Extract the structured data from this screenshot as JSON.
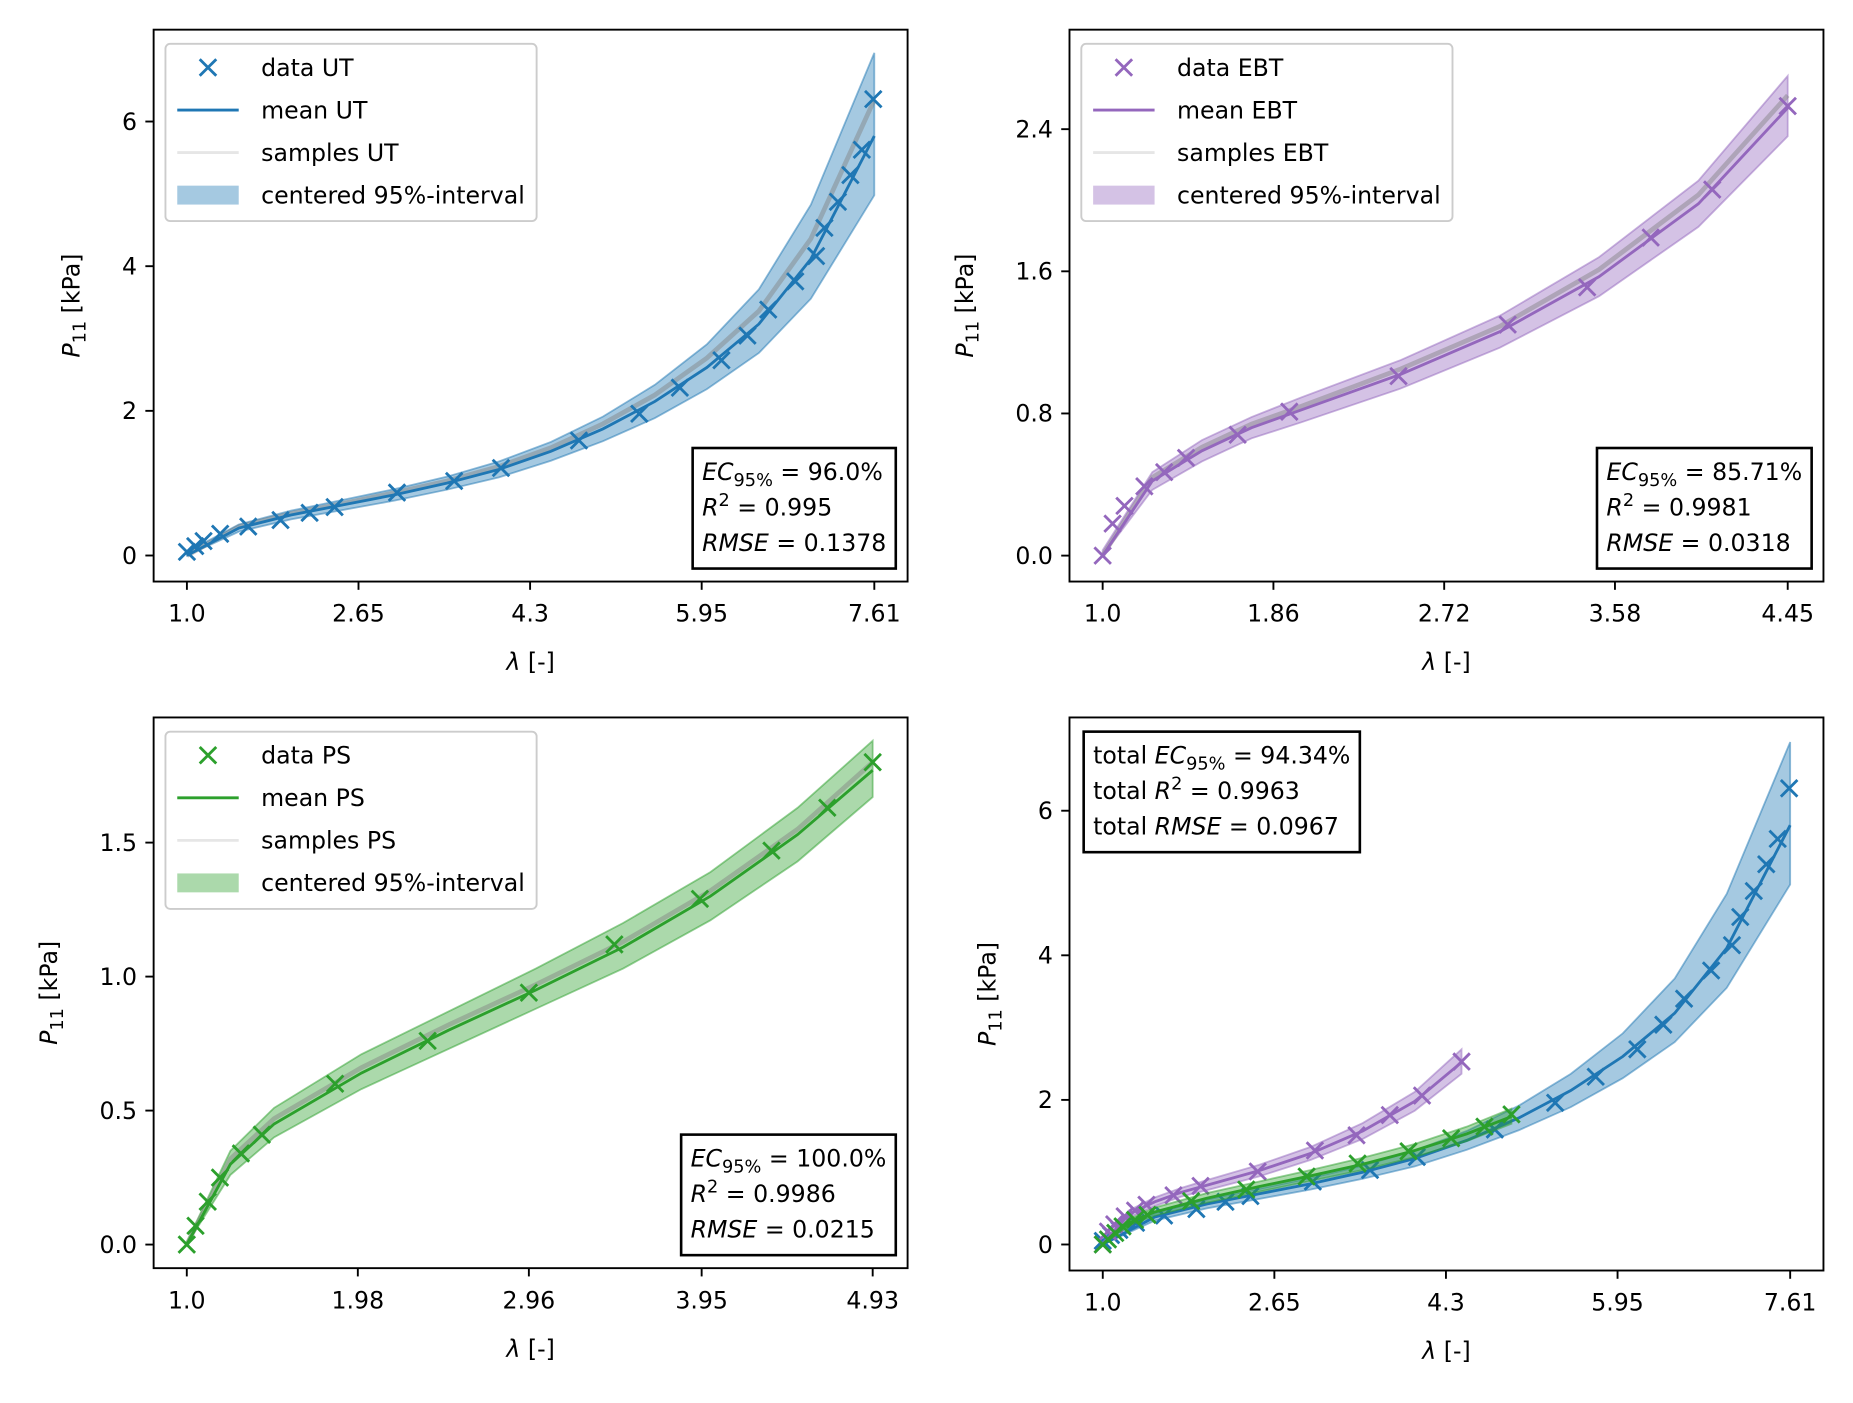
{
  "chart_data": [
    {
      "type": "line",
      "legend_loc": "upper left",
      "xlabel": {
        "symbol": "λ",
        "unit": " [-]"
      },
      "ylabel": {
        "symbol": "P",
        "sub": "11",
        "unit": " [kPa]"
      },
      "xlim": [
        0.68,
        7.93
      ],
      "ylim": [
        -0.36,
        7.27
      ],
      "xticks": [
        {
          "value": 1,
          "label": "1.0"
        },
        2.65,
        4.3,
        5.95,
        7.61
      ],
      "yticks": [
        0,
        2,
        4,
        6
      ],
      "stats": {
        "loc": "lower right",
        "lines": [
          {
            "var": "EC",
            "sub": "95%",
            "value": " = 96.0%"
          },
          {
            "var": "R",
            "sup": "2",
            "value": " = 0.995"
          },
          {
            "var": "RMSE",
            "value": " = 0.1378"
          }
        ]
      },
      "datasets": [
        {
          "color": "#1f77b4",
          "data": {
            "name": "data UT",
            "x": [
              1.0,
              1.08,
              1.16,
              1.32,
              1.59,
              1.9,
              2.18,
              2.42,
              3.02,
              3.57,
              4.02,
              4.77,
              5.35,
              5.74,
              6.14,
              6.39,
              6.59,
              6.85,
              7.05,
              7.13,
              7.26,
              7.38,
              7.49,
              7.6
            ],
            "values": [
              0.05,
              0.13,
              0.2,
              0.3,
              0.4,
              0.49,
              0.59,
              0.67,
              0.87,
              1.03,
              1.21,
              1.59,
              1.96,
              2.32,
              2.7,
              3.04,
              3.4,
              3.79,
              4.14,
              4.53,
              4.89,
              5.26,
              5.61,
              6.31
            ]
          },
          "curve_x": [
            1,
            1.5,
            2,
            2.5,
            3,
            3.5,
            4,
            4.5,
            5,
            5.5,
            6,
            6.5,
            7,
            7.61
          ],
          "mean": {
            "name": "mean UT",
            "values": [
              0,
              0.38,
              0.56,
              0.7,
              0.84,
              1.0,
              1.19,
              1.44,
              1.75,
              2.13,
              2.6,
              3.2,
              4.1,
              5.8
            ]
          },
          "samples": {
            "name": "samples UT",
            "color": "#808080",
            "values": [
              0,
              0.4,
              0.58,
              0.72,
              0.87,
              1.03,
              1.23,
              1.49,
              1.82,
              2.22,
              2.73,
              3.38,
              4.38,
              6.3
            ]
          },
          "interval": {
            "name": "centered 95%-interval",
            "upper": [
              0.05,
              0.43,
              0.62,
              0.77,
              0.92,
              1.09,
              1.3,
              1.57,
              1.92,
              2.36,
              2.92,
              3.68,
              4.85,
              6.95
            ],
            "lower": [
              0,
              0.33,
              0.5,
              0.63,
              0.76,
              0.91,
              1.08,
              1.31,
              1.58,
              1.9,
              2.3,
              2.8,
              3.55,
              4.98
            ]
          }
        }
      ]
    },
    {
      "type": "line",
      "legend_loc": "upper left",
      "xlabel": {
        "symbol": "λ",
        "unit": " [-]"
      },
      "ylabel": {
        "symbol": "P",
        "sub": "11",
        "unit": " [kPa]"
      },
      "xlim": [
        0.833,
        4.63
      ],
      "ylim": [
        -0.146,
        2.96
      ],
      "xticks": [
        {
          "value": 1,
          "label": "1.0"
        },
        1.86,
        2.72,
        3.58,
        4.45
      ],
      "yticks": [
        {
          "value": 0,
          "label": "0.0"
        },
        0.8,
        1.6,
        2.4
      ],
      "stats": {
        "loc": "lower right",
        "lines": [
          {
            "var": "EC",
            "sub": "95%",
            "value": " = 85.71%"
          },
          {
            "var": "R",
            "sup": "2",
            "value": " = 0.9981"
          },
          {
            "var": "RMSE",
            "value": " = 0.0318"
          }
        ]
      },
      "datasets": [
        {
          "color": "#9467bd",
          "data": {
            "name": "data EBT",
            "x": [
              1.0,
              1.05,
              1.11,
              1.21,
              1.31,
              1.42,
              1.68,
              1.94,
              2.49,
              3.04,
              3.44,
              3.76,
              4.07,
              4.45
            ],
            "values": [
              0.0,
              0.18,
              0.28,
              0.39,
              0.47,
              0.55,
              0.68,
              0.81,
              1.01,
              1.3,
              1.51,
              1.79,
              2.06,
              2.53
            ]
          },
          "curve_x": [
            1,
            1.25,
            1.5,
            1.75,
            2,
            2.5,
            3,
            3.5,
            4,
            4.45
          ],
          "mean": {
            "name": "mean EBT",
            "values": [
              0,
              0.42,
              0.59,
              0.72,
              0.82,
              1.02,
              1.26,
              1.57,
              1.98,
              2.52
            ]
          },
          "samples": {
            "name": "samples EBT",
            "color": "#808080",
            "values": [
              0,
              0.44,
              0.61,
              0.74,
              0.84,
              1.05,
              1.29,
              1.61,
              2.03,
              2.59
            ]
          },
          "interval": {
            "name": "centered 95%-interval",
            "upper": [
              0.03,
              0.47,
              0.65,
              0.78,
              0.89,
              1.1,
              1.35,
              1.68,
              2.11,
              2.7
            ],
            "lower": [
              0,
              0.37,
              0.53,
              0.66,
              0.75,
              0.94,
              1.17,
              1.46,
              1.85,
              2.36
            ]
          }
        }
      ]
    },
    {
      "type": "line",
      "legend_loc": "upper left",
      "xlabel": {
        "symbol": "λ",
        "unit": " [-]"
      },
      "ylabel": {
        "symbol": "P",
        "sub": "11",
        "unit": " [kPa]"
      },
      "xlim": [
        0.81,
        5.13
      ],
      "ylim": [
        -0.088,
        1.967
      ],
      "xticks": [
        {
          "value": 1,
          "label": "1.0"
        },
        1.98,
        2.96,
        3.95,
        4.93
      ],
      "yticks": [
        {
          "value": 0,
          "label": "0.0"
        },
        0.5,
        {
          "value": 1,
          "label": "1.0"
        },
        1.5
      ],
      "stats": {
        "loc": "lower right",
        "lines": [
          {
            "var": "EC",
            "sub": "95%",
            "value": " = 100.0%"
          },
          {
            "var": "R",
            "sup": "2",
            "value": " = 0.9986"
          },
          {
            "var": "RMSE",
            "value": " = 0.0215"
          }
        ]
      },
      "datasets": [
        {
          "color": "#2ca02c",
          "data": {
            "name": "data PS",
            "x": [
              1.0,
              1.05,
              1.12,
              1.19,
              1.31,
              1.43,
              1.85,
              2.38,
              2.96,
              3.45,
              3.94,
              4.35,
              4.67,
              4.93
            ],
            "values": [
              0.0,
              0.07,
              0.16,
              0.25,
              0.34,
              0.41,
              0.6,
              0.76,
              0.94,
              1.12,
              1.29,
              1.47,
              1.63,
              1.8
            ]
          },
          "curve_x": [
            1,
            1.25,
            1.5,
            2,
            2.5,
            3,
            3.5,
            4,
            4.5,
            4.93
          ],
          "mean": {
            "name": "mean PS",
            "values": [
              0,
              0.3,
              0.45,
              0.64,
              0.8,
              0.95,
              1.11,
              1.3,
              1.53,
              1.77
            ]
          },
          "samples": {
            "name": "samples PS",
            "color": "#808080",
            "values": [
              0,
              0.32,
              0.47,
              0.66,
              0.82,
              0.97,
              1.13,
              1.32,
              1.55,
              1.8
            ]
          },
          "interval": {
            "name": "centered 95%-interval",
            "upper": [
              0.01,
              0.35,
              0.51,
              0.71,
              0.87,
              1.03,
              1.2,
              1.39,
              1.63,
              1.88
            ],
            "lower": [
              0,
              0.26,
              0.4,
              0.58,
              0.73,
              0.88,
              1.03,
              1.21,
              1.43,
              1.67
            ]
          }
        }
      ]
    },
    {
      "type": "line",
      "legend_loc": null,
      "xlabel": {
        "symbol": "λ",
        "unit": " [-]"
      },
      "ylabel": {
        "symbol": "P",
        "sub": "11",
        "unit": " [kPa]"
      },
      "xlim": [
        0.68,
        7.93
      ],
      "ylim": [
        -0.36,
        7.29
      ],
      "xticks": [
        {
          "value": 1,
          "label": "1.0"
        },
        2.65,
        4.3,
        5.95,
        7.61
      ],
      "yticks": [
        0,
        2,
        4,
        6
      ],
      "stats": {
        "loc": "upper left",
        "lines": [
          {
            "prefix": "total ",
            "var": "EC",
            "sub": "95%",
            "value": " = 94.34%"
          },
          {
            "prefix": "total ",
            "var": "R",
            "sup": "2",
            "value": " = 0.9963"
          },
          {
            "prefix": "total ",
            "var": "RMSE",
            "value": " = 0.0967"
          }
        ]
      },
      "datasets": [
        {
          "color": "#1f77b4",
          "data": {
            "x": [
              1.0,
              1.08,
              1.16,
              1.32,
              1.59,
              1.9,
              2.18,
              2.42,
              3.02,
              3.57,
              4.02,
              4.77,
              5.35,
              5.74,
              6.14,
              6.39,
              6.59,
              6.85,
              7.05,
              7.13,
              7.26,
              7.38,
              7.49,
              7.6
            ],
            "values": [
              0.05,
              0.13,
              0.2,
              0.3,
              0.4,
              0.49,
              0.59,
              0.67,
              0.87,
              1.03,
              1.21,
              1.59,
              1.96,
              2.32,
              2.7,
              3.04,
              3.4,
              3.79,
              4.14,
              4.53,
              4.89,
              5.26,
              5.61,
              6.31
            ]
          },
          "curve_x": [
            1,
            1.5,
            2,
            2.5,
            3,
            3.5,
            4,
            4.5,
            5,
            5.5,
            6,
            6.5,
            7,
            7.61
          ],
          "mean": {
            "values": [
              0,
              0.38,
              0.56,
              0.7,
              0.84,
              1.0,
              1.19,
              1.44,
              1.75,
              2.13,
              2.6,
              3.2,
              4.1,
              5.8
            ]
          },
          "interval": {
            "upper": [
              0.05,
              0.43,
              0.62,
              0.77,
              0.92,
              1.09,
              1.3,
              1.57,
              1.92,
              2.36,
              2.92,
              3.68,
              4.85,
              6.95
            ],
            "lower": [
              0,
              0.33,
              0.5,
              0.63,
              0.76,
              0.91,
              1.08,
              1.31,
              1.58,
              1.9,
              2.3,
              2.8,
              3.55,
              4.98
            ]
          }
        },
        {
          "color": "#9467bd",
          "data": {
            "x": [
              1.0,
              1.05,
              1.11,
              1.21,
              1.31,
              1.42,
              1.68,
              1.94,
              2.49,
              3.04,
              3.44,
              3.76,
              4.07,
              4.45
            ],
            "values": [
              0.0,
              0.18,
              0.28,
              0.39,
              0.47,
              0.55,
              0.68,
              0.81,
              1.01,
              1.3,
              1.51,
              1.79,
              2.06,
              2.53
            ]
          },
          "curve_x": [
            1,
            1.25,
            1.5,
            1.75,
            2,
            2.5,
            3,
            3.5,
            4,
            4.45
          ],
          "mean": {
            "values": [
              0,
              0.42,
              0.59,
              0.72,
              0.82,
              1.02,
              1.26,
              1.57,
              1.98,
              2.52
            ]
          },
          "interval": {
            "upper": [
              0.03,
              0.47,
              0.65,
              0.78,
              0.89,
              1.1,
              1.35,
              1.68,
              2.11,
              2.7
            ],
            "lower": [
              0,
              0.37,
              0.53,
              0.66,
              0.75,
              0.94,
              1.17,
              1.46,
              1.85,
              2.36
            ]
          }
        },
        {
          "color": "#2ca02c",
          "data": {
            "x": [
              1.0,
              1.05,
              1.12,
              1.19,
              1.31,
              1.43,
              1.85,
              2.38,
              2.96,
              3.45,
              3.94,
              4.35,
              4.67,
              4.93
            ],
            "values": [
              0.0,
              0.07,
              0.16,
              0.25,
              0.34,
              0.41,
              0.6,
              0.76,
              0.94,
              1.12,
              1.29,
              1.47,
              1.63,
              1.8
            ]
          },
          "curve_x": [
            1,
            1.25,
            1.5,
            2,
            2.5,
            3,
            3.5,
            4,
            4.5,
            4.93
          ],
          "mean": {
            "values": [
              0,
              0.3,
              0.45,
              0.64,
              0.8,
              0.95,
              1.11,
              1.3,
              1.53,
              1.77
            ]
          },
          "interval": {
            "upper": [
              0.01,
              0.35,
              0.51,
              0.71,
              0.87,
              1.03,
              1.2,
              1.39,
              1.63,
              1.88
            ],
            "lower": [
              0,
              0.26,
              0.4,
              0.58,
              0.73,
              0.88,
              1.03,
              1.21,
              1.43,
              1.67
            ]
          }
        }
      ]
    }
  ]
}
